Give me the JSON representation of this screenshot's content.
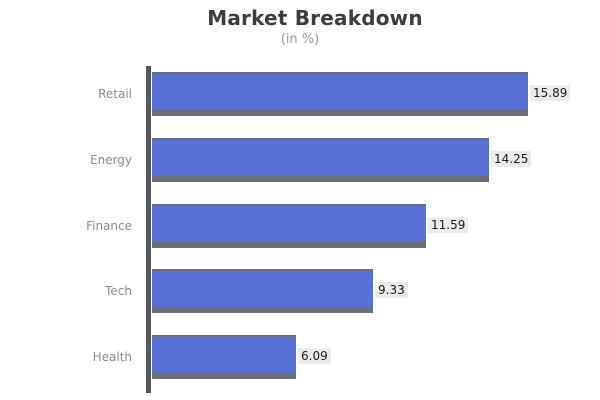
{
  "chart_data": {
    "type": "bar",
    "orientation": "horizontal",
    "title": "Market Breakdown",
    "subtitle": "(in %)",
    "categories": [
      "Retail",
      "Energy",
      "Finance",
      "Tech",
      "Health"
    ],
    "values": [
      15.89,
      14.25,
      11.59,
      9.33,
      6.09
    ],
    "value_labels": [
      "15.89",
      "14.25",
      "11.59",
      "9.33",
      "6.09"
    ],
    "xlim": [
      0,
      16.5
    ],
    "grid": false,
    "legend": "none",
    "colors": {
      "bar_fill": "#5571d8",
      "bar_edge": "#6b6e74",
      "axis_spine": "#54575c",
      "category_label": "#8c8c8c",
      "title": "#3c3c3c",
      "subtitle": "#9b9b9b",
      "value_box_bg": "#ebebeb",
      "value_text": "#1a1a1a"
    }
  }
}
